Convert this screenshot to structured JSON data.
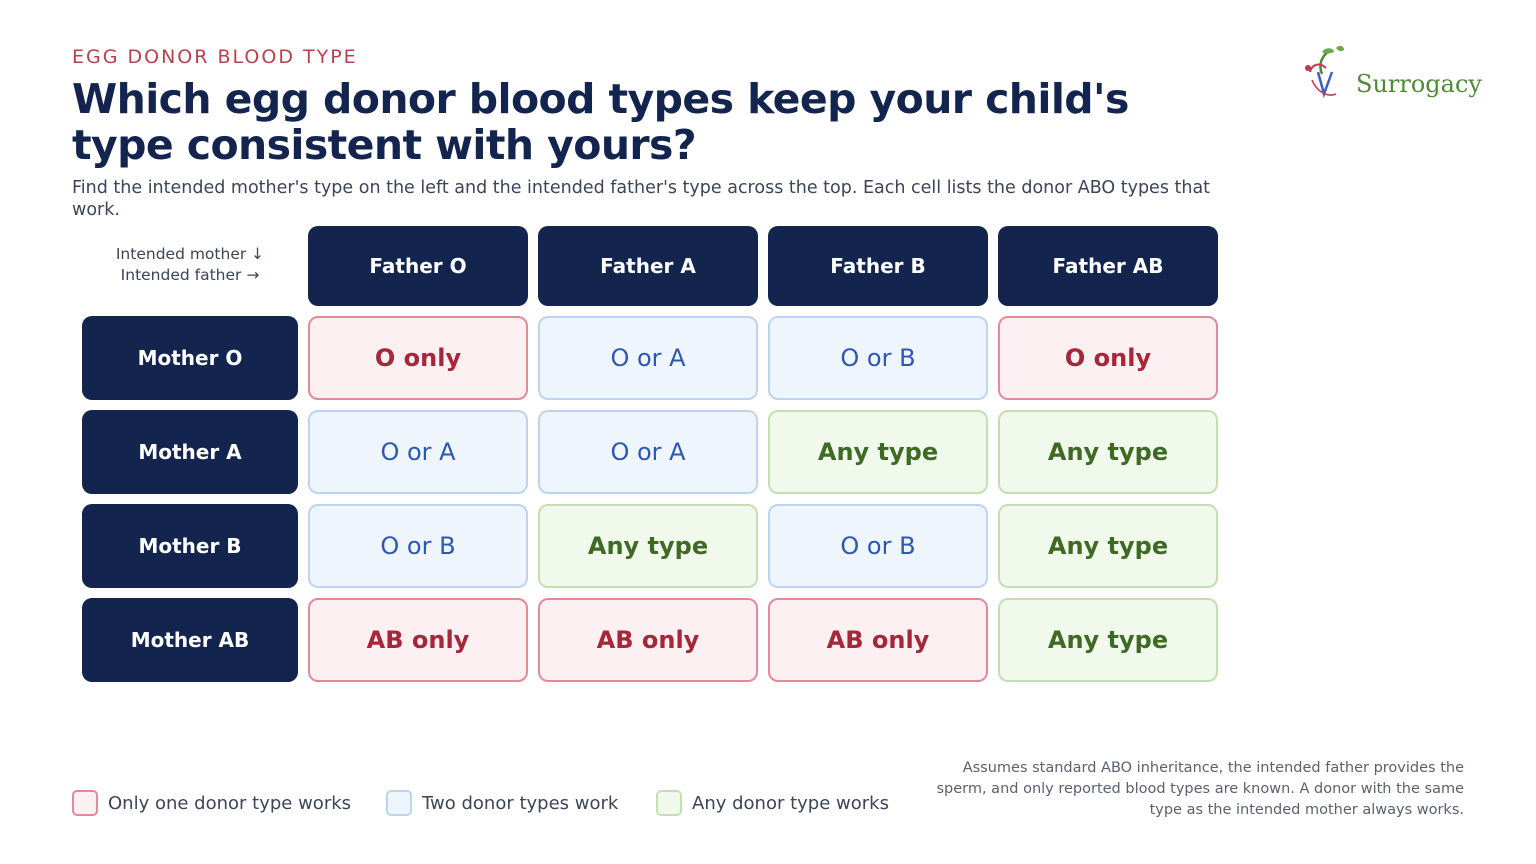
{
  "header": {
    "eyebrow": "EGG DONOR BLOOD TYPE",
    "title": "Which egg donor blood types keep your child's type consistent with yours?",
    "subtitle": "Find the intended mother's type on the left and the intended father's type across the top. Each cell lists the donor ABO types that work."
  },
  "brand": {
    "name": "Surrogacy",
    "color": "#4f8a34"
  },
  "grid": {
    "axis_note_mother": "Intended mother ↓",
    "axis_note_father": "Intended father →",
    "columns": [
      "Father O",
      "Father A",
      "Father B",
      "Father AB"
    ],
    "rows": [
      {
        "label": "Mother O",
        "cells": [
          {
            "text": "O only",
            "kind": "one"
          },
          {
            "text": "O or A",
            "kind": "two"
          },
          {
            "text": "O or B",
            "kind": "two"
          },
          {
            "text": "O only",
            "kind": "one"
          }
        ]
      },
      {
        "label": "Mother A",
        "cells": [
          {
            "text": "O or A",
            "kind": "two"
          },
          {
            "text": "O or A",
            "kind": "two"
          },
          {
            "text": "Any type",
            "kind": "any"
          },
          {
            "text": "Any type",
            "kind": "any"
          }
        ]
      },
      {
        "label": "Mother B",
        "cells": [
          {
            "text": "O or B",
            "kind": "two"
          },
          {
            "text": "Any type",
            "kind": "any"
          },
          {
            "text": "O or B",
            "kind": "two"
          },
          {
            "text": "Any type",
            "kind": "any"
          }
        ]
      },
      {
        "label": "Mother AB",
        "cells": [
          {
            "text": "AB only",
            "kind": "one"
          },
          {
            "text": "AB only",
            "kind": "one"
          },
          {
            "text": "AB only",
            "kind": "one"
          },
          {
            "text": "Any type",
            "kind": "any"
          }
        ]
      }
    ]
  },
  "legend": [
    {
      "label": "Only one donor type works",
      "kind": "one"
    },
    {
      "label": "Two donor types work",
      "kind": "two"
    },
    {
      "label": "Any donor type works",
      "kind": "any"
    }
  ],
  "colors": {
    "navy": "#13254f",
    "one_text": "#a6263a",
    "two_text": "#2d57b3",
    "any_text": "#3e6a24",
    "eyebrow": "#b9404f"
  },
  "footnote": "Assumes standard ABO inheritance, the intended father provides the sperm, and only reported blood types are known. A donor with the same type as the intended mother always works."
}
